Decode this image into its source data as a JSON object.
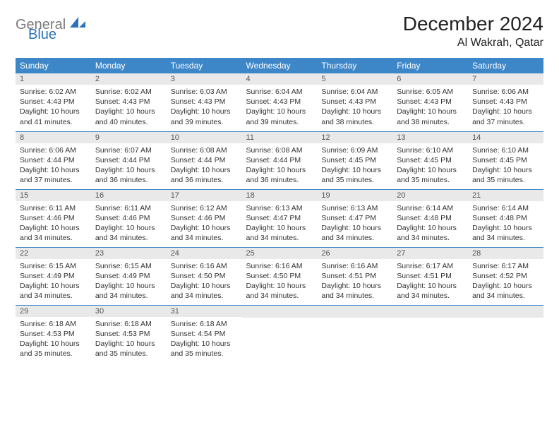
{
  "logo": {
    "gray": "General",
    "blue": "Blue"
  },
  "title": "December 2024",
  "location": "Al Wakrah, Qatar",
  "theme": {
    "header_bg": "#3d87c9",
    "header_fg": "#ffffff",
    "daynum_bg": "#e9e9e9",
    "border": "#3d87c9",
    "text": "#333333",
    "title_fontsize": 28,
    "cell_fontsize": 10.5
  },
  "weekdays": [
    "Sunday",
    "Monday",
    "Tuesday",
    "Wednesday",
    "Thursday",
    "Friday",
    "Saturday"
  ],
  "weeks": [
    [
      {
        "n": "1",
        "sr": "6:02 AM",
        "ss": "4:43 PM",
        "dl": "10 hours and 41 minutes."
      },
      {
        "n": "2",
        "sr": "6:02 AM",
        "ss": "4:43 PM",
        "dl": "10 hours and 40 minutes."
      },
      {
        "n": "3",
        "sr": "6:03 AM",
        "ss": "4:43 PM",
        "dl": "10 hours and 39 minutes."
      },
      {
        "n": "4",
        "sr": "6:04 AM",
        "ss": "4:43 PM",
        "dl": "10 hours and 39 minutes."
      },
      {
        "n": "5",
        "sr": "6:04 AM",
        "ss": "4:43 PM",
        "dl": "10 hours and 38 minutes."
      },
      {
        "n": "6",
        "sr": "6:05 AM",
        "ss": "4:43 PM",
        "dl": "10 hours and 38 minutes."
      },
      {
        "n": "7",
        "sr": "6:06 AM",
        "ss": "4:43 PM",
        "dl": "10 hours and 37 minutes."
      }
    ],
    [
      {
        "n": "8",
        "sr": "6:06 AM",
        "ss": "4:44 PM",
        "dl": "10 hours and 37 minutes."
      },
      {
        "n": "9",
        "sr": "6:07 AM",
        "ss": "4:44 PM",
        "dl": "10 hours and 36 minutes."
      },
      {
        "n": "10",
        "sr": "6:08 AM",
        "ss": "4:44 PM",
        "dl": "10 hours and 36 minutes."
      },
      {
        "n": "11",
        "sr": "6:08 AM",
        "ss": "4:44 PM",
        "dl": "10 hours and 36 minutes."
      },
      {
        "n": "12",
        "sr": "6:09 AM",
        "ss": "4:45 PM",
        "dl": "10 hours and 35 minutes."
      },
      {
        "n": "13",
        "sr": "6:10 AM",
        "ss": "4:45 PM",
        "dl": "10 hours and 35 minutes."
      },
      {
        "n": "14",
        "sr": "6:10 AM",
        "ss": "4:45 PM",
        "dl": "10 hours and 35 minutes."
      }
    ],
    [
      {
        "n": "15",
        "sr": "6:11 AM",
        "ss": "4:46 PM",
        "dl": "10 hours and 34 minutes."
      },
      {
        "n": "16",
        "sr": "6:11 AM",
        "ss": "4:46 PM",
        "dl": "10 hours and 34 minutes."
      },
      {
        "n": "17",
        "sr": "6:12 AM",
        "ss": "4:46 PM",
        "dl": "10 hours and 34 minutes."
      },
      {
        "n": "18",
        "sr": "6:13 AM",
        "ss": "4:47 PM",
        "dl": "10 hours and 34 minutes."
      },
      {
        "n": "19",
        "sr": "6:13 AM",
        "ss": "4:47 PM",
        "dl": "10 hours and 34 minutes."
      },
      {
        "n": "20",
        "sr": "6:14 AM",
        "ss": "4:48 PM",
        "dl": "10 hours and 34 minutes."
      },
      {
        "n": "21",
        "sr": "6:14 AM",
        "ss": "4:48 PM",
        "dl": "10 hours and 34 minutes."
      }
    ],
    [
      {
        "n": "22",
        "sr": "6:15 AM",
        "ss": "4:49 PM",
        "dl": "10 hours and 34 minutes."
      },
      {
        "n": "23",
        "sr": "6:15 AM",
        "ss": "4:49 PM",
        "dl": "10 hours and 34 minutes."
      },
      {
        "n": "24",
        "sr": "6:16 AM",
        "ss": "4:50 PM",
        "dl": "10 hours and 34 minutes."
      },
      {
        "n": "25",
        "sr": "6:16 AM",
        "ss": "4:50 PM",
        "dl": "10 hours and 34 minutes."
      },
      {
        "n": "26",
        "sr": "6:16 AM",
        "ss": "4:51 PM",
        "dl": "10 hours and 34 minutes."
      },
      {
        "n": "27",
        "sr": "6:17 AM",
        "ss": "4:51 PM",
        "dl": "10 hours and 34 minutes."
      },
      {
        "n": "28",
        "sr": "6:17 AM",
        "ss": "4:52 PM",
        "dl": "10 hours and 34 minutes."
      }
    ],
    [
      {
        "n": "29",
        "sr": "6:18 AM",
        "ss": "4:53 PM",
        "dl": "10 hours and 35 minutes."
      },
      {
        "n": "30",
        "sr": "6:18 AM",
        "ss": "4:53 PM",
        "dl": "10 hours and 35 minutes."
      },
      {
        "n": "31",
        "sr": "6:18 AM",
        "ss": "4:54 PM",
        "dl": "10 hours and 35 minutes."
      },
      null,
      null,
      null,
      null
    ]
  ],
  "labels": {
    "sunrise": "Sunrise:",
    "sunset": "Sunset:",
    "daylight": "Daylight:"
  }
}
